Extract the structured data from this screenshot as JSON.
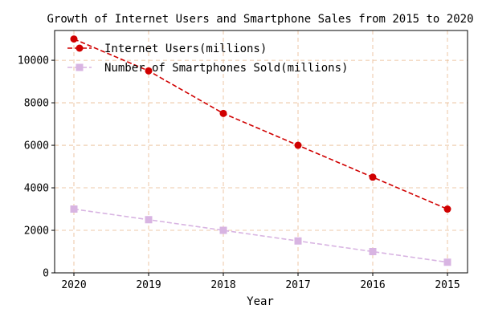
{
  "chart_data": {
    "type": "line",
    "title": "Growth of Internet Users and Smartphone Sales from 2015 to 2020",
    "xlabel": "Year",
    "ylabel": "",
    "categories": [
      "2020",
      "2019",
      "2018",
      "2017",
      "2016",
      "2015"
    ],
    "ylim": [
      0,
      11400
    ],
    "yticks": [
      "0",
      "2000",
      "4000",
      "6000",
      "8000",
      "10000"
    ],
    "grid": true,
    "legend_position": "top-left",
    "series": [
      {
        "name": "Internet Users(millions)",
        "values": [
          11000,
          9500,
          7500,
          6000,
          4500,
          3000
        ],
        "color": "#d00000",
        "marker": "circle",
        "line_style": "dashed"
      },
      {
        "name": "Number of Smartphones Sold(millions)",
        "values": [
          3000,
          2500,
          2000,
          1500,
          1000,
          500
        ],
        "color": "#d8b4e2",
        "marker": "square",
        "line_style": "dashed"
      }
    ],
    "grid_color": "#e8b98f",
    "axis_color": "#000000"
  }
}
